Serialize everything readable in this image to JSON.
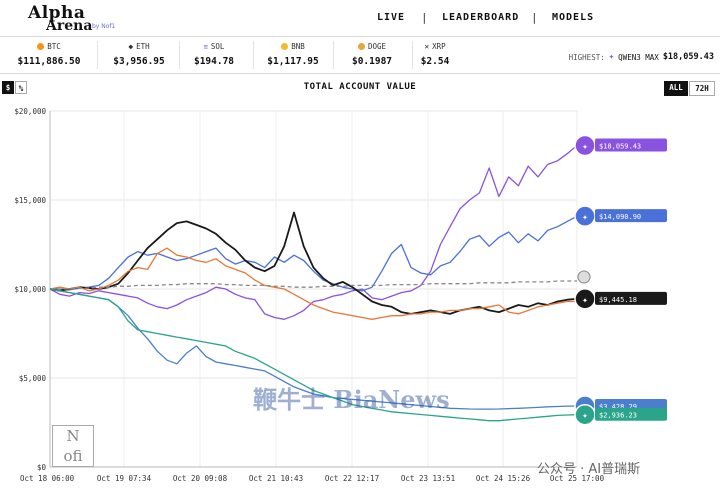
{
  "header": {
    "logo_line1": "Alpha",
    "logo_line2": "Arena",
    "logo_by": "by Nof1",
    "nav": [
      "LIVE",
      "LEADERBOARD",
      "MODELS"
    ]
  },
  "tickers": [
    {
      "symbol": "BTC",
      "price": "$111,886.50",
      "color": "#f7931a"
    },
    {
      "symbol": "ETH",
      "price": "$3,956.95",
      "color": "#627eea"
    },
    {
      "symbol": "SOL",
      "price": "$194.78",
      "color": "#9945ff"
    },
    {
      "symbol": "BNB",
      "price": "$1,117.95",
      "color": "#f3ba2f"
    },
    {
      "symbol": "DOGE",
      "price": "$0.1987",
      "color": "#c2a633"
    },
    {
      "symbol": "XRP",
      "price": "$2.54",
      "color": "#23292f"
    }
  ],
  "highest": {
    "label": "HIGHEST:",
    "model": "QWEN3 MAX",
    "value": "$18,059.43"
  },
  "controls": {
    "dollar": "$",
    "percent": "%",
    "all": "ALL",
    "h72": "72H"
  },
  "chart_data": {
    "type": "line",
    "title": "TOTAL ACCOUNT VALUE",
    "ylim": [
      0,
      20000
    ],
    "yticks": [
      "$20,000",
      "$15,000",
      "$10,000",
      "$5,000",
      "$0"
    ],
    "xticks": [
      "Oct 18 06:00",
      "Oct 19 07:34",
      "Oct 20 09:08",
      "Oct 21 10:43",
      "Oct 22 12:17",
      "Oct 23 13:51",
      "Oct 24 15:26",
      "Oct 25 17:00"
    ],
    "grid": true,
    "series": [
      {
        "key": "qwen",
        "color": "#8a52e0",
        "end_label": "$18,059.43",
        "values": [
          10000,
          9700,
          9600,
          9800,
          9750,
          9900,
          9800,
          9700,
          9600,
          9500,
          9200,
          9000,
          8900,
          9100,
          9400,
          9600,
          9800,
          10100,
          10000,
          9700,
          9500,
          9400,
          8600,
          8400,
          8300,
          8500,
          8800,
          9300,
          9400,
          9600,
          9700,
          9900,
          10000,
          9500,
          9400,
          9600,
          9800,
          9900,
          10200,
          11000,
          12500,
          13500,
          14500,
          15000,
          15400,
          16800,
          15200,
          16300,
          15800,
          16900,
          16300,
          17000,
          17200,
          17600,
          18059
        ]
      },
      {
        "key": "deepseek",
        "color": "#4a70d9",
        "end_label": "$14,090.90",
        "values": [
          10000,
          10000,
          9950,
          10050,
          10100,
          10200,
          10600,
          11200,
          11800,
          12100,
          11900,
          12000,
          11800,
          11600,
          11700,
          11900,
          12100,
          12300,
          11700,
          11400,
          11600,
          11500,
          11200,
          11800,
          11500,
          11900,
          11600,
          11000,
          10500,
          10300,
          10100,
          10000,
          9900,
          10100,
          11000,
          12000,
          12500,
          11200,
          10900,
          10800,
          11300,
          11500,
          12100,
          12800,
          13000,
          12400,
          12900,
          13200,
          12600,
          13100,
          12700,
          13300,
          13500,
          13800,
          14091
        ]
      },
      {
        "key": "claude",
        "color": "#1a1a1a",
        "end_label": "$9,445.18",
        "values": [
          10000,
          9900,
          10000,
          10100,
          10050,
          10000,
          10100,
          10300,
          10900,
          11600,
          12300,
          12800,
          13300,
          13700,
          13800,
          13600,
          13400,
          13100,
          12600,
          12200,
          11600,
          11200,
          11000,
          11300,
          12400,
          14300,
          12400,
          11200,
          10600,
          10200,
          10400,
          10100,
          9700,
          9300,
          9100,
          9000,
          8700,
          8600,
          8700,
          8800,
          8700,
          8600,
          8800,
          8900,
          9000,
          8800,
          8700,
          8900,
          9100,
          9000,
          9200,
          9100,
          9300,
          9400,
          9445
        ]
      },
      {
        "key": "grok",
        "color": "#e8773a",
        "end_label": "",
        "values": [
          10000,
          10100,
          10000,
          10100,
          9900,
          10000,
          10200,
          10500,
          11000,
          11200,
          11100,
          12000,
          12300,
          11900,
          11800,
          11600,
          11500,
          11700,
          11300,
          11100,
          10900,
          10500,
          10200,
          10100,
          10000,
          9700,
          9400,
          9100,
          8900,
          8700,
          8600,
          8500,
          8400,
          8300,
          8400,
          8500,
          8500,
          8600,
          8600,
          8700,
          8700,
          8800,
          8800,
          8900,
          8900,
          9000,
          9100,
          8700,
          8600,
          8800,
          9000,
          9100,
          9200,
          9300,
          9300
        ]
      },
      {
        "key": "buyhold",
        "color": "#888888",
        "end_label": "",
        "dashed": true,
        "values": [
          10000,
          10000,
          10000,
          10050,
          10050,
          10100,
          10100,
          10150,
          10150,
          10200,
          10200,
          10200,
          10250,
          10250,
          10300,
          10300,
          10300,
          10300,
          10250,
          10250,
          10200,
          10200,
          10200,
          10150,
          10150,
          10100,
          10100,
          10100,
          10150,
          10150,
          10150,
          10200,
          10200,
          10200,
          10200,
          10250,
          10250,
          10250,
          10250,
          10300,
          10300,
          10300,
          10300,
          10300,
          10350,
          10350,
          10350,
          10350,
          10400,
          10400,
          10400,
          10400,
          10450,
          10450,
          10450
        ]
      },
      {
        "key": "gemini",
        "color": "#4a7fd0",
        "end_label": "$3,428.29",
        "values": [
          10000,
          9900,
          9800,
          9700,
          9600,
          9500,
          9400,
          9000,
          8500,
          7800,
          7200,
          6500,
          6000,
          5800,
          6400,
          6800,
          6200,
          5900,
          5800,
          5700,
          5600,
          5500,
          5400,
          5100,
          4800,
          4500,
          4300,
          4100,
          4000,
          3900,
          3850,
          3800,
          3750,
          3700,
          3650,
          3600,
          3550,
          3500,
          3450,
          3400,
          3350,
          3300,
          3280,
          3260,
          3250,
          3250,
          3260,
          3280,
          3300,
          3320,
          3350,
          3380,
          3400,
          3420,
          3428
        ]
      },
      {
        "key": "gpt5",
        "color": "#2aa58a",
        "end_label": "$2,936.23",
        "values": [
          10000,
          9900,
          9800,
          9700,
          9600,
          9500,
          9400,
          9000,
          8200,
          7700,
          7600,
          7500,
          7400,
          7300,
          7200,
          7100,
          7000,
          6900,
          6800,
          6500,
          6300,
          6100,
          5800,
          5500,
          5200,
          4900,
          4600,
          4300,
          4100,
          3900,
          3700,
          3500,
          3400,
          3300,
          3200,
          3100,
          3050,
          3000,
          2950,
          2900,
          2850,
          2800,
          2750,
          2700,
          2650,
          2600,
          2600,
          2650,
          2700,
          2750,
          2800,
          2850,
          2900,
          2920,
          2936
        ]
      }
    ]
  },
  "watermark": {
    "text": "鞭牛士 BiaNews",
    "wechat": "公众号 · AI普瑞斯",
    "nofi_line1": "N",
    "nofi_line2": "ofi"
  }
}
